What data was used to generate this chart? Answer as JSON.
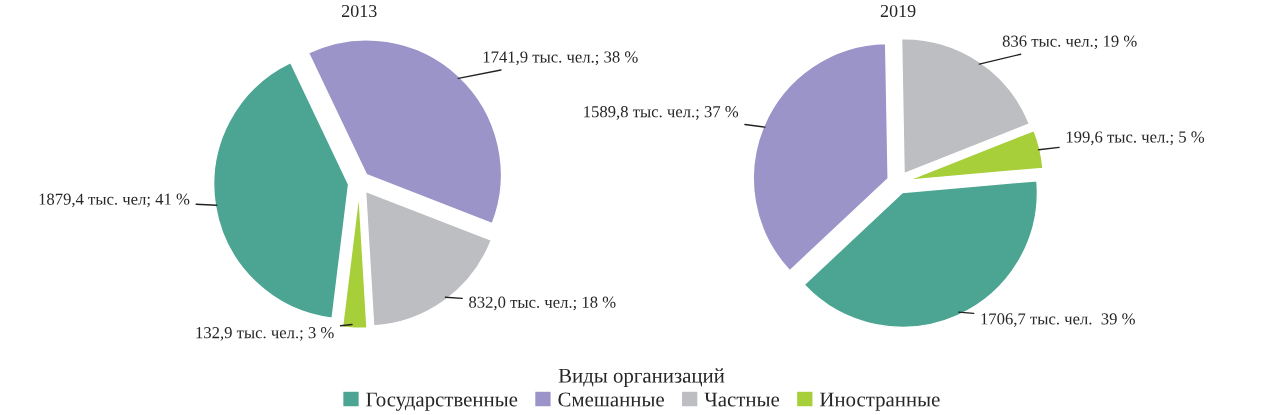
{
  "chart_data": [
    {
      "type": "pie",
      "title": "2013",
      "categories": [
        "Государственные",
        "Смешанные",
        "Частные",
        "Иностранные"
      ],
      "values": [
        1879.4,
        1741.9,
        832.0,
        132.9
      ],
      "colors": [
        "#4ca592",
        "#9b94c8",
        "#bdbec1",
        "#a7cf3a"
      ],
      "value_labels": [
        "1879,4 тыс. чел; 41 %",
        "1741,9 тыс. чел.; 38 %",
        "832,0 тыс. чел.; 18 %",
        "132,9 тыс. чел.; 3 %"
      ],
      "legend_title": "Виды организаций",
      "legend": "bottom"
    },
    {
      "type": "pie",
      "title": "2019",
      "values": [
        1706.7,
        1589.8,
        836,
        199.6
      ],
      "colors": [
        "#4ca592",
        "#9b94c8",
        "#bdbec1",
        "#a7cf3a"
      ],
      "value_labels": [
        "1706,7 тыс. чел.  39 %",
        "1589,8 тыс. чел.; 37 %",
        "836 тыс. чел.; 19 %",
        "199,6 тыс. чел.; 5 %"
      ]
    }
  ]
}
